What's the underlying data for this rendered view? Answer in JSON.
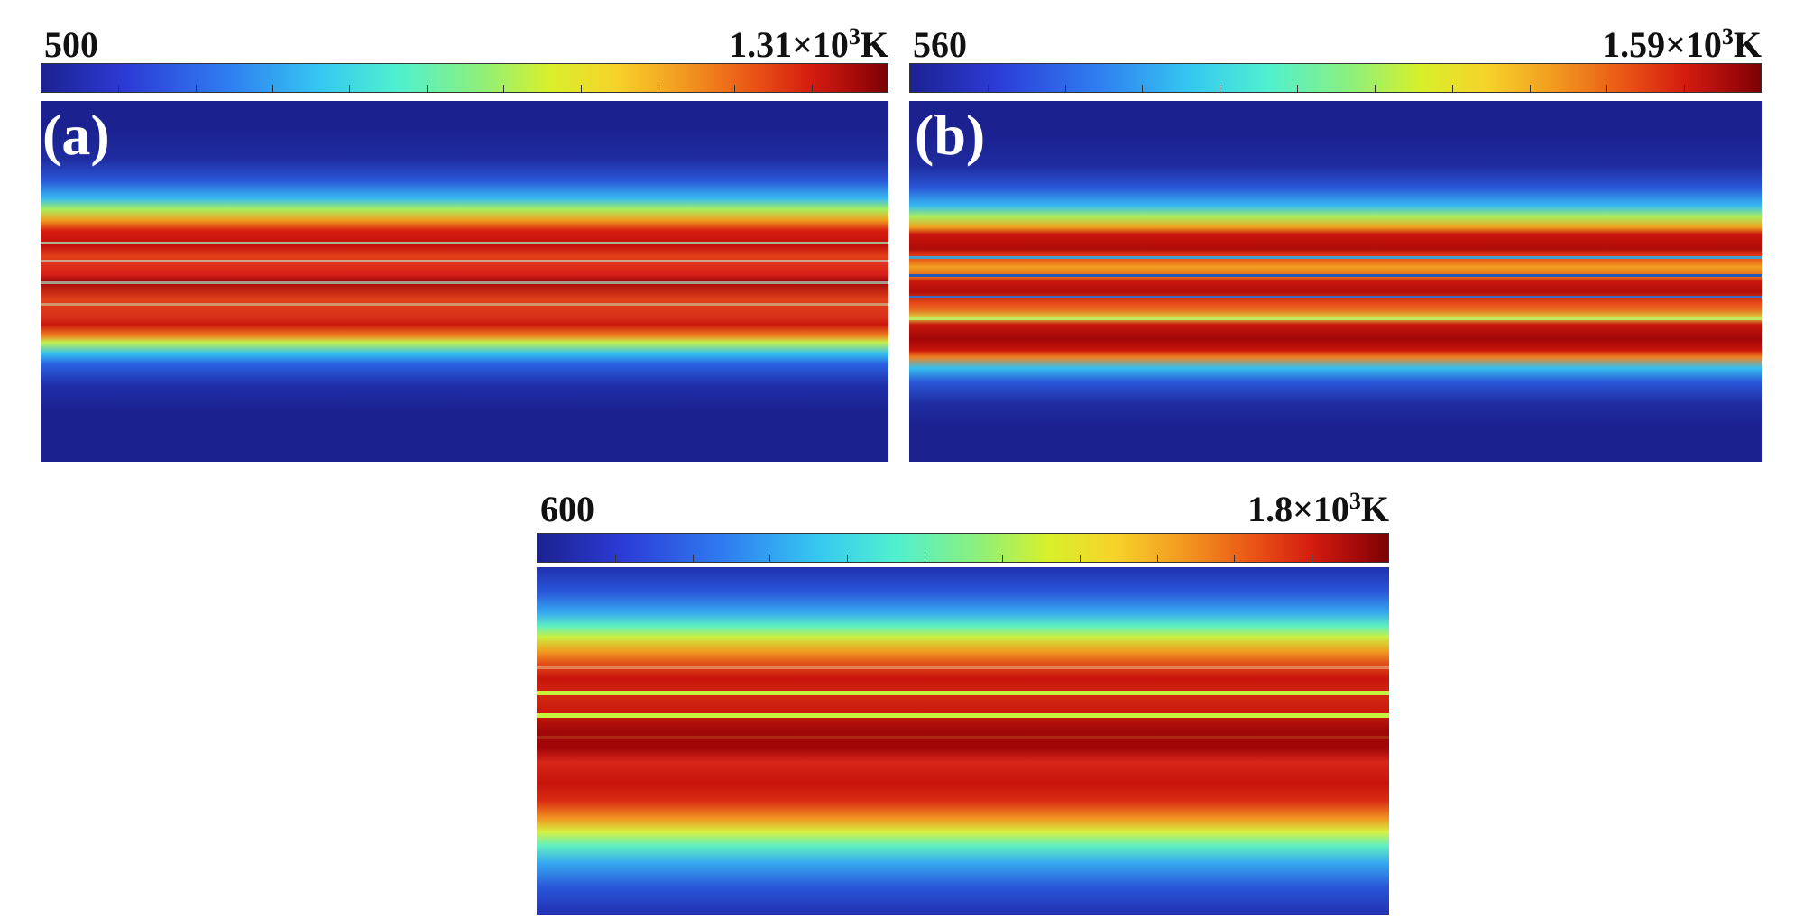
{
  "panels": [
    {
      "id": "a",
      "letter": "(a)",
      "min_label": "500",
      "max_mantissa": "1.31×10",
      "max_exp": "3",
      "max_unit": "K"
    },
    {
      "id": "b",
      "letter": "(b)",
      "min_label": "560",
      "max_mantissa": "1.59×10",
      "max_exp": "3",
      "max_unit": "K"
    },
    {
      "id": "c",
      "letter": "",
      "min_label": "600",
      "max_mantissa": "1.8×10",
      "max_exp": "3",
      "max_unit": "K"
    }
  ],
  "colormap": "jet",
  "colors": {
    "background_field": "#1b2290",
    "hot": "#c9160c",
    "hottest": "#8e0406"
  }
}
